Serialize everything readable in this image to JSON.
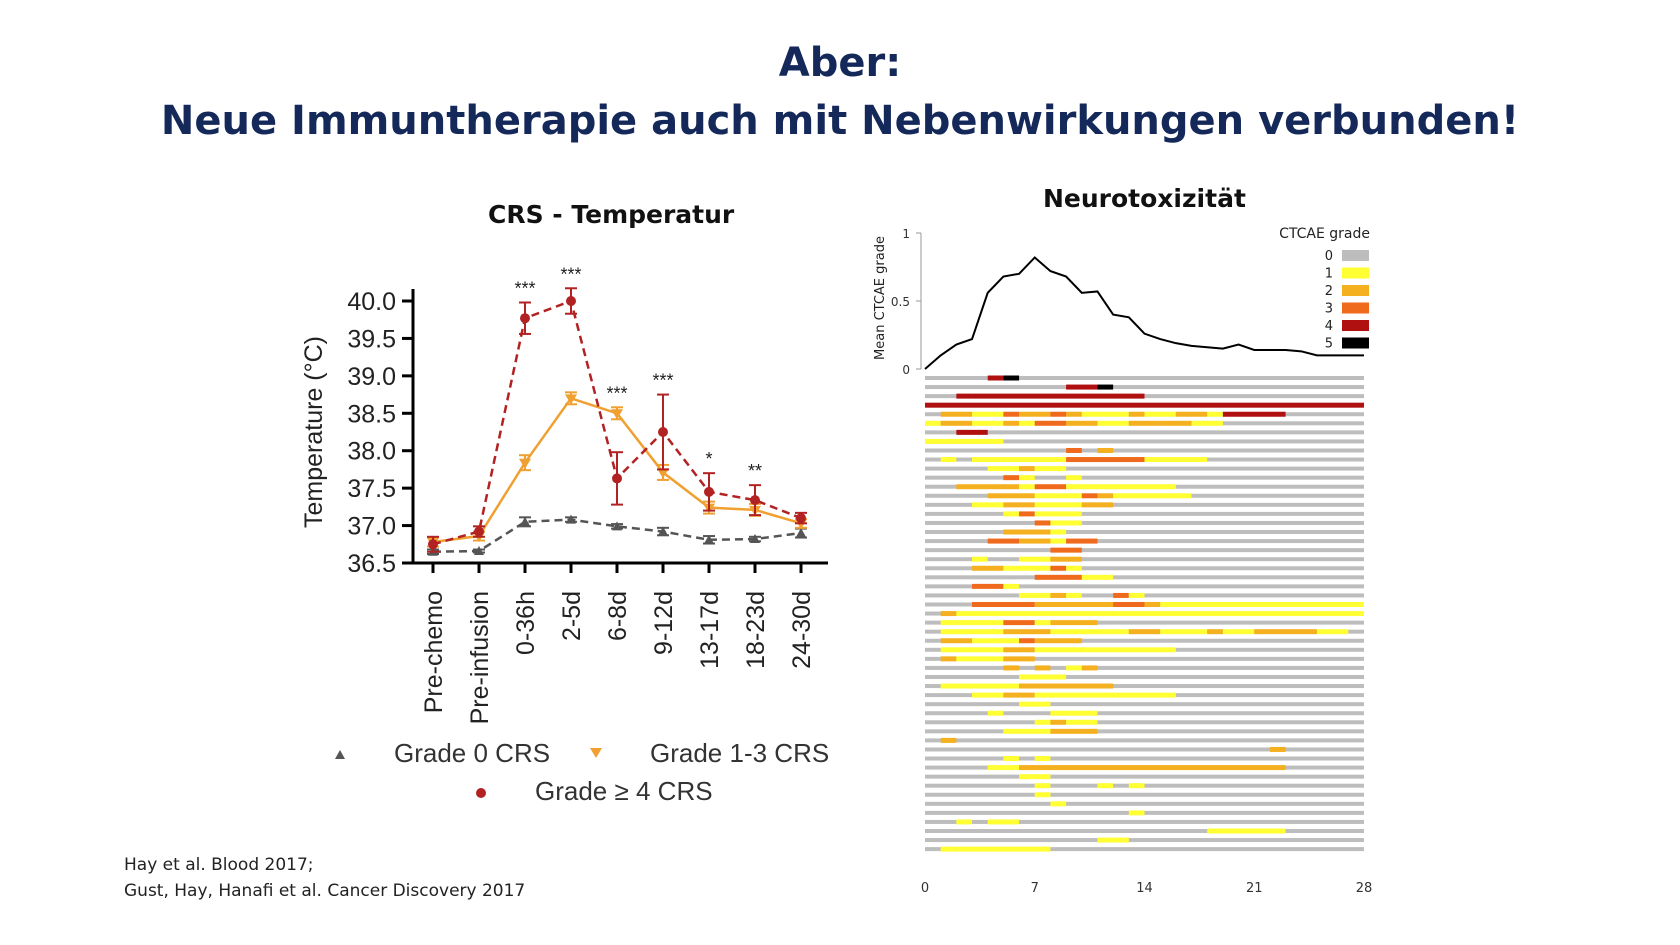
{
  "header": {
    "line1": "Aber:",
    "line2": "Neue Immuntherapie auch mit Nebenwirkungen verbunden!"
  },
  "references": {
    "line1": "Hay et al. Blood 2017;",
    "line2": "Gust, Hay, Hanafi et al. Cancer Discovery 2017"
  },
  "colors": {
    "title": "#14285a",
    "grade0": "#555555",
    "grade13": "#f0a030",
    "grade4": "#b22222"
  },
  "chart_data": [
    {
      "type": "line",
      "title": "CRS - Temperatur",
      "ylabel": "Temperature (°C)",
      "xlabel": "",
      "ylim": [
        36.5,
        40.0
      ],
      "yticks": [
        "40.0",
        "39.5",
        "39.0",
        "38.5",
        "38.0",
        "37.5",
        "37.0",
        "36.5"
      ],
      "categories": [
        "Pre-chemo",
        "Pre-infusion",
        "0-36h",
        "2-5d",
        "6-8d",
        "9-12d",
        "13-17d",
        "18-23d",
        "24-30d"
      ],
      "significance": [
        "",
        "",
        "***",
        "***",
        "***",
        "***",
        "*",
        "**",
        ""
      ],
      "series": [
        {
          "name": "Grade 0 CRS",
          "marker": "triangle-up",
          "color": "#555555",
          "values": [
            36.65,
            36.66,
            37.05,
            37.08,
            36.99,
            36.92,
            36.81,
            36.82,
            36.9
          ],
          "errors": [
            0.03,
            0.02,
            0.06,
            0.03,
            0.03,
            0.05,
            0.05,
            0.03,
            0.06
          ]
        },
        {
          "name": "Grade 1-3 CRS",
          "marker": "triangle-down",
          "color": "#f0a030",
          "values": [
            36.78,
            36.86,
            37.84,
            38.7,
            38.5,
            37.71,
            37.24,
            37.21,
            37.03
          ],
          "errors": [
            0.06,
            0.06,
            0.1,
            0.08,
            0.08,
            0.1,
            0.08,
            0.08,
            0.06
          ]
        },
        {
          "name": "Grade ≥ 4 CRS",
          "marker": "circle",
          "color": "#b22222",
          "values": [
            36.75,
            36.92,
            39.77,
            40.0,
            37.63,
            38.25,
            37.45,
            37.34,
            37.1
          ],
          "errors": [
            0.1,
            0.07,
            0.21,
            0.17,
            0.35,
            0.5,
            0.25,
            0.2,
            0.07
          ]
        }
      ]
    },
    {
      "type": "line",
      "title": "Neurotoxizität",
      "ylabel": "Mean CTCAE grade",
      "ylim": [
        0,
        1
      ],
      "yticks": [
        "1",
        "0.5",
        "0"
      ],
      "x": [
        0,
        1,
        2,
        3,
        4,
        5,
        6,
        7,
        8,
        9,
        10,
        11,
        12,
        13,
        14,
        15,
        16,
        17,
        18,
        19,
        20,
        21,
        22,
        23,
        24,
        25,
        26,
        27,
        28
      ],
      "values": [
        0.0,
        0.1,
        0.18,
        0.22,
        0.56,
        0.68,
        0.7,
        0.82,
        0.72,
        0.68,
        0.56,
        0.57,
        0.4,
        0.38,
        0.26,
        0.22,
        0.19,
        0.17,
        0.16,
        0.15,
        0.18,
        0.14,
        0.14,
        0.14,
        0.13,
        0.1,
        0.1,
        0.1,
        0.1
      ],
      "color": "#000000"
    },
    {
      "type": "heatmap",
      "xlabel": "",
      "xticks": [
        "0",
        "7",
        "14",
        "21",
        "28"
      ],
      "xlim": [
        0,
        28
      ],
      "legend_title": "CTCAE grade",
      "grades": [
        {
          "label": "0",
          "color": "#bdbdbd"
        },
        {
          "label": "1",
          "color": "#ffff33"
        },
        {
          "label": "2",
          "color": "#f5b020"
        },
        {
          "label": "3",
          "color": "#f06a1e"
        },
        {
          "label": "4",
          "color": "#b01010"
        },
        {
          "label": "5",
          "color": "#000000"
        }
      ],
      "patients": [
        [
          [
            4,
            5,
            4
          ],
          [
            5,
            6,
            5
          ]
        ],
        [
          [
            9,
            11,
            4
          ],
          [
            11,
            12,
            5
          ]
        ],
        [
          [
            2,
            3,
            4
          ],
          [
            3,
            14,
            4
          ]
        ],
        [
          [
            0,
            28,
            4
          ]
        ],
        [
          [
            1,
            3,
            2
          ],
          [
            3,
            5,
            1
          ],
          [
            5,
            6,
            3
          ],
          [
            6,
            8,
            2
          ],
          [
            8,
            9,
            3
          ],
          [
            9,
            10,
            2
          ],
          [
            10,
            13,
            1
          ],
          [
            13,
            14,
            2
          ],
          [
            14,
            16,
            1
          ],
          [
            16,
            18,
            2
          ],
          [
            18,
            19,
            1
          ],
          [
            19,
            23,
            4
          ]
        ],
        [
          [
            0,
            1,
            1
          ],
          [
            1,
            3,
            2
          ],
          [
            3,
            5,
            1
          ],
          [
            5,
            6,
            2
          ],
          [
            6,
            7,
            1
          ],
          [
            7,
            9,
            3
          ],
          [
            9,
            11,
            2
          ],
          [
            11,
            13,
            1
          ],
          [
            13,
            15,
            2
          ],
          [
            15,
            17,
            2
          ],
          [
            17,
            19,
            1
          ]
        ],
        [
          [
            2,
            4,
            4
          ]
        ],
        [
          [
            0,
            5,
            1
          ]
        ],
        [
          [
            9,
            10,
            3
          ],
          [
            11,
            12,
            2
          ]
        ],
        [
          [
            1,
            2,
            1
          ],
          [
            3,
            5,
            1
          ],
          [
            5,
            9,
            1
          ],
          [
            9,
            14,
            3
          ],
          [
            14,
            18,
            1
          ]
        ],
        [
          [
            4,
            6,
            1
          ],
          [
            6,
            7,
            2
          ],
          [
            7,
            9,
            1
          ]
        ],
        [
          [
            5,
            6,
            3
          ],
          [
            6,
            7,
            1
          ],
          [
            9,
            10,
            1
          ]
        ],
        [
          [
            2,
            6,
            2
          ],
          [
            6,
            7,
            1
          ],
          [
            7,
            9,
            3
          ],
          [
            9,
            16,
            1
          ]
        ],
        [
          [
            4,
            7,
            2
          ],
          [
            7,
            10,
            1
          ],
          [
            10,
            11,
            3
          ],
          [
            11,
            12,
            2
          ],
          [
            12,
            17,
            1
          ]
        ],
        [
          [
            3,
            5,
            1
          ],
          [
            5,
            7,
            2
          ],
          [
            7,
            10,
            1
          ],
          [
            10,
            12,
            2
          ]
        ],
        [
          [
            5,
            6,
            1
          ],
          [
            6,
            7,
            3
          ],
          [
            7,
            10,
            1
          ]
        ],
        [
          [
            7,
            8,
            3
          ],
          [
            8,
            10,
            1
          ]
        ],
        [
          [
            5,
            8,
            2
          ],
          [
            8,
            9,
            1
          ]
        ],
        [
          [
            4,
            6,
            3
          ],
          [
            6,
            8,
            2
          ],
          [
            8,
            9,
            1
          ],
          [
            9,
            11,
            3
          ]
        ],
        [
          [
            8,
            10,
            3
          ]
        ],
        [
          [
            3,
            4,
            1
          ],
          [
            6,
            8,
            1
          ],
          [
            8,
            10,
            2
          ]
        ],
        [
          [
            3,
            5,
            2
          ],
          [
            5,
            8,
            1
          ],
          [
            8,
            9,
            3
          ],
          [
            9,
            10,
            1
          ]
        ],
        [
          [
            7,
            10,
            3
          ],
          [
            10,
            12,
            1
          ]
        ],
        [
          [
            3,
            5,
            3
          ],
          [
            5,
            6,
            1
          ]
        ],
        [
          [
            6,
            8,
            1
          ],
          [
            8,
            9,
            2
          ],
          [
            9,
            10,
            1
          ],
          [
            12,
            13,
            3
          ],
          [
            13,
            14,
            1
          ]
        ],
        [
          [
            3,
            7,
            3
          ],
          [
            7,
            12,
            2
          ],
          [
            12,
            14,
            3
          ],
          [
            14,
            15,
            2
          ],
          [
            15,
            28,
            1
          ]
        ],
        [
          [
            1,
            2,
            2
          ],
          [
            2,
            3,
            1
          ],
          [
            3,
            12,
            1
          ],
          [
            12,
            14,
            1
          ],
          [
            14,
            28,
            1
          ]
        ],
        [
          [
            1,
            2,
            1
          ],
          [
            2,
            5,
            1
          ],
          [
            5,
            7,
            3
          ],
          [
            7,
            8,
            1
          ],
          [
            8,
            11,
            2
          ]
        ],
        [
          [
            1,
            5,
            1
          ],
          [
            5,
            8,
            2
          ],
          [
            8,
            10,
            1
          ],
          [
            10,
            12,
            1
          ],
          [
            12,
            13,
            1
          ],
          [
            13,
            15,
            2
          ],
          [
            15,
            18,
            1
          ],
          [
            18,
            19,
            2
          ],
          [
            19,
            21,
            1
          ],
          [
            21,
            23,
            2
          ],
          [
            23,
            25,
            2
          ],
          [
            25,
            27,
            1
          ]
        ],
        [
          [
            1,
            3,
            2
          ],
          [
            3,
            6,
            1
          ],
          [
            6,
            7,
            3
          ],
          [
            7,
            10,
            2
          ]
        ],
        [
          [
            1,
            5,
            1
          ],
          [
            5,
            7,
            2
          ],
          [
            7,
            10,
            1
          ],
          [
            10,
            16,
            1
          ]
        ],
        [
          [
            1,
            2,
            2
          ],
          [
            2,
            5,
            1
          ],
          [
            5,
            7,
            2
          ]
        ],
        [
          [
            5,
            6,
            2
          ],
          [
            7,
            8,
            2
          ],
          [
            9,
            10,
            1
          ],
          [
            10,
            11,
            2
          ]
        ],
        [
          [
            6,
            9,
            1
          ]
        ],
        [
          [
            1,
            6,
            1
          ],
          [
            6,
            8,
            2
          ],
          [
            8,
            11,
            2
          ],
          [
            11,
            12,
            2
          ]
        ],
        [
          [
            3,
            5,
            1
          ],
          [
            5,
            7,
            2
          ],
          [
            7,
            12,
            1
          ],
          [
            12,
            16,
            1
          ]
        ],
        [
          [
            6,
            8,
            1
          ]
        ],
        [
          [
            4,
            5,
            1
          ],
          [
            8,
            11,
            1
          ]
        ],
        [
          [
            7,
            8,
            1
          ],
          [
            8,
            9,
            2
          ],
          [
            9,
            11,
            1
          ]
        ],
        [
          [
            5,
            8,
            1
          ],
          [
            8,
            11,
            2
          ]
        ],
        [
          [
            1,
            2,
            2
          ]
        ],
        [
          [
            22,
            23,
            2
          ]
        ],
        [
          [
            5,
            6,
            1
          ],
          [
            7,
            8,
            1
          ]
        ],
        [
          [
            4,
            6,
            1
          ],
          [
            6,
            23,
            2
          ]
        ],
        [
          [
            6,
            8,
            1
          ]
        ],
        [
          [
            7,
            8,
            1
          ],
          [
            11,
            12,
            1
          ],
          [
            13,
            14,
            1
          ]
        ],
        [
          [
            7,
            8,
            1
          ]
        ],
        [
          [
            8,
            9,
            1
          ]
        ],
        [
          [
            13,
            14,
            1
          ]
        ],
        [
          [
            2,
            3,
            1
          ],
          [
            4,
            6,
            1
          ]
        ],
        [
          [
            18,
            23,
            1
          ]
        ],
        [
          [
            11,
            13,
            1
          ]
        ],
        [
          [
            1,
            2,
            1
          ],
          [
            2,
            8,
            1
          ]
        ]
      ]
    }
  ]
}
